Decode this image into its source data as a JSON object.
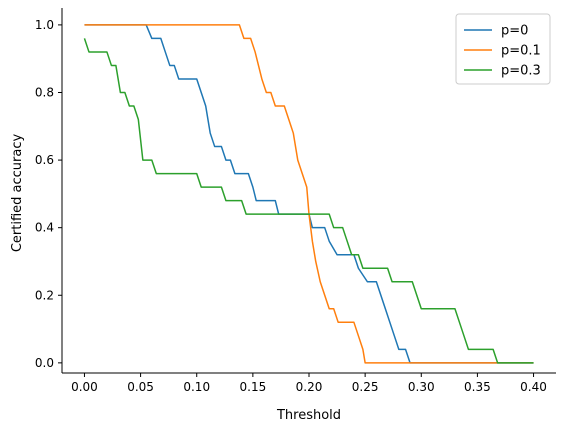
{
  "chart_data": {
    "type": "line",
    "xlabel": "Threshold",
    "ylabel": "Certified accuracy",
    "xlim": [
      -0.02,
      0.42
    ],
    "ylim": [
      -0.03,
      1.05
    ],
    "xticks": [
      "0.00",
      "0.05",
      "0.10",
      "0.15",
      "0.20",
      "0.25",
      "0.30",
      "0.35",
      "0.40"
    ],
    "yticks": [
      "0.0",
      "0.2",
      "0.4",
      "0.6",
      "0.8",
      "1.0"
    ],
    "grid": false,
    "legend_position": "top-right",
    "series": [
      {
        "name": "p=0",
        "color": "#1f77b4",
        "points": [
          [
            0,
            1.0
          ],
          [
            0.055,
            1.0
          ],
          [
            0.06,
            0.96
          ],
          [
            0.068,
            0.96
          ],
          [
            0.072,
            0.92
          ],
          [
            0.076,
            0.88
          ],
          [
            0.08,
            0.88
          ],
          [
            0.084,
            0.84
          ],
          [
            0.1,
            0.84
          ],
          [
            0.104,
            0.8
          ],
          [
            0.108,
            0.76
          ],
          [
            0.112,
            0.68
          ],
          [
            0.116,
            0.64
          ],
          [
            0.122,
            0.64
          ],
          [
            0.126,
            0.6
          ],
          [
            0.13,
            0.6
          ],
          [
            0.134,
            0.56
          ],
          [
            0.146,
            0.56
          ],
          [
            0.15,
            0.52
          ],
          [
            0.153,
            0.48
          ],
          [
            0.17,
            0.48
          ],
          [
            0.173,
            0.44
          ],
          [
            0.2,
            0.44
          ],
          [
            0.203,
            0.4
          ],
          [
            0.214,
            0.4
          ],
          [
            0.218,
            0.36
          ],
          [
            0.225,
            0.32
          ],
          [
            0.24,
            0.32
          ],
          [
            0.244,
            0.28
          ],
          [
            0.252,
            0.24
          ],
          [
            0.26,
            0.24
          ],
          [
            0.264,
            0.2
          ],
          [
            0.268,
            0.16
          ],
          [
            0.272,
            0.12
          ],
          [
            0.276,
            0.08
          ],
          [
            0.28,
            0.04
          ],
          [
            0.286,
            0.04
          ],
          [
            0.29,
            0.0
          ],
          [
            0.4,
            0.0
          ]
        ]
      },
      {
        "name": "p=0.1",
        "color": "#ff7f0e",
        "points": [
          [
            0,
            1.0
          ],
          [
            0.138,
            1.0
          ],
          [
            0.142,
            0.96
          ],
          [
            0.148,
            0.96
          ],
          [
            0.152,
            0.92
          ],
          [
            0.155,
            0.88
          ],
          [
            0.158,
            0.84
          ],
          [
            0.162,
            0.8
          ],
          [
            0.166,
            0.8
          ],
          [
            0.17,
            0.76
          ],
          [
            0.178,
            0.76
          ],
          [
            0.182,
            0.72
          ],
          [
            0.186,
            0.68
          ],
          [
            0.19,
            0.6
          ],
          [
            0.194,
            0.56
          ],
          [
            0.198,
            0.52
          ],
          [
            0.2,
            0.44
          ],
          [
            0.203,
            0.36
          ],
          [
            0.206,
            0.3
          ],
          [
            0.21,
            0.24
          ],
          [
            0.214,
            0.2
          ],
          [
            0.218,
            0.16
          ],
          [
            0.222,
            0.16
          ],
          [
            0.226,
            0.12
          ],
          [
            0.24,
            0.12
          ],
          [
            0.244,
            0.08
          ],
          [
            0.248,
            0.04
          ],
          [
            0.25,
            0.0
          ],
          [
            0.4,
            0.0
          ]
        ]
      },
      {
        "name": "p=0.3",
        "color": "#2ca02c",
        "points": [
          [
            0,
            0.96
          ],
          [
            0.004,
            0.92
          ],
          [
            0.02,
            0.92
          ],
          [
            0.024,
            0.88
          ],
          [
            0.028,
            0.88
          ],
          [
            0.032,
            0.8
          ],
          [
            0.036,
            0.8
          ],
          [
            0.04,
            0.76
          ],
          [
            0.044,
            0.76
          ],
          [
            0.048,
            0.72
          ],
          [
            0.052,
            0.6
          ],
          [
            0.06,
            0.6
          ],
          [
            0.064,
            0.56
          ],
          [
            0.1,
            0.56
          ],
          [
            0.104,
            0.52
          ],
          [
            0.122,
            0.52
          ],
          [
            0.126,
            0.48
          ],
          [
            0.14,
            0.48
          ],
          [
            0.144,
            0.44
          ],
          [
            0.218,
            0.44
          ],
          [
            0.222,
            0.4
          ],
          [
            0.23,
            0.4
          ],
          [
            0.234,
            0.36
          ],
          [
            0.238,
            0.32
          ],
          [
            0.244,
            0.32
          ],
          [
            0.248,
            0.28
          ],
          [
            0.27,
            0.28
          ],
          [
            0.274,
            0.24
          ],
          [
            0.292,
            0.24
          ],
          [
            0.296,
            0.2
          ],
          [
            0.3,
            0.16
          ],
          [
            0.33,
            0.16
          ],
          [
            0.334,
            0.12
          ],
          [
            0.338,
            0.08
          ],
          [
            0.342,
            0.04
          ],
          [
            0.364,
            0.04
          ],
          [
            0.368,
            0.0
          ],
          [
            0.4,
            0.0
          ]
        ]
      }
    ]
  }
}
